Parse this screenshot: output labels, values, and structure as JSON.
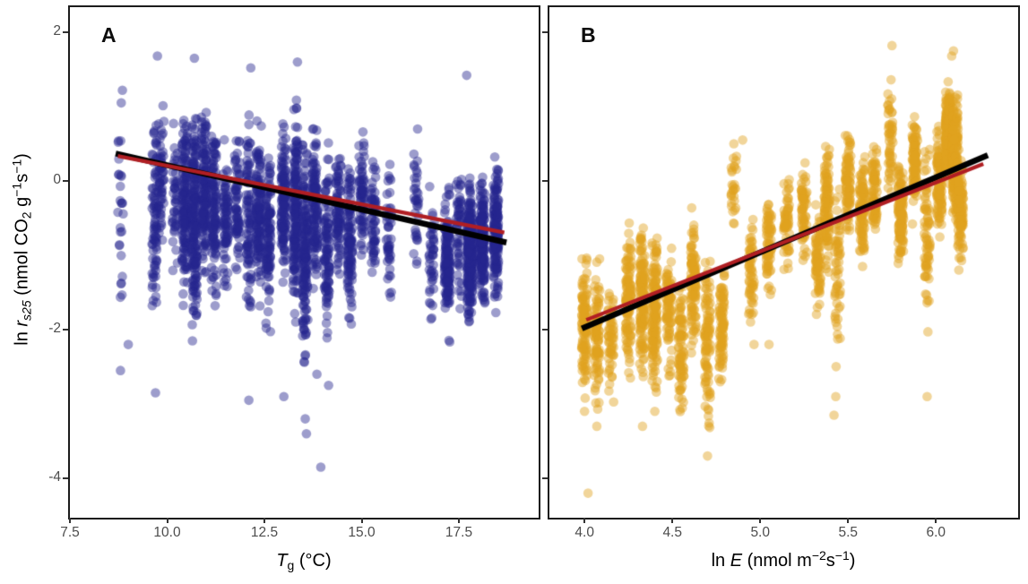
{
  "figure": {
    "background": "#ffffff",
    "border_color": "#1c1c1c",
    "tick_color": "#333333",
    "tick_label_color": "#4d4d4d"
  },
  "y_axis": {
    "ylim": [
      -4.53,
      2.337
    ],
    "ticks": [
      {
        "value": 2,
        "label": "2"
      },
      {
        "value": 0,
        "label": "0"
      },
      {
        "value": -2,
        "label": "-2"
      },
      {
        "value": -4,
        "label": "-4"
      }
    ],
    "title_parts": {
      "lead": "ln ",
      "italic": "r",
      "sub": "s25",
      "rest": " (nmol CO",
      "sub2": "2",
      "mid": " g",
      "sup1": "−1",
      "mid2": "s",
      "sup2": "−1",
      "close": ")"
    }
  },
  "chart_data": [
    {
      "id": "a",
      "type": "scatter",
      "panel_label": "A",
      "xlabel_parts": {
        "lead": "",
        "italic": "T",
        "sub": "g",
        "rest": " (°C)",
        "sup1": "",
        "mid": "",
        "sup2": "",
        "close": ""
      },
      "x_ticks": [
        {
          "value": 7.5,
          "label": "7.5"
        },
        {
          "value": 10.0,
          "label": "10.0"
        },
        {
          "value": 12.5,
          "label": "12.5"
        },
        {
          "value": 15.0,
          "label": "15.0"
        },
        {
          "value": 17.5,
          "label": "17.5"
        }
      ],
      "xlim": [
        7.5,
        19.55
      ],
      "point_color": "#26268f",
      "point_alpha": 0.45,
      "point_radius": 5.3,
      "jitter": 0.07,
      "seed": 42,
      "fit_lines": [
        {
          "color": "#000000",
          "width": 6.5,
          "x1": 8.75,
          "y1": 0.36,
          "x2": 18.65,
          "y2": -0.82
        },
        {
          "color": "#b01e23",
          "width": 4.2,
          "x1": 8.78,
          "y1": 0.33,
          "x2": 18.62,
          "y2": -0.69
        }
      ],
      "columns": [
        [
          8.8,
          -0.4,
          1.15,
          26
        ],
        [
          9.68,
          -0.5,
          1.25,
          80
        ],
        [
          9.85,
          -0.1,
          0.9,
          55
        ],
        [
          10.2,
          -0.2,
          0.8,
          45
        ],
        [
          10.45,
          -0.3,
          1.15,
          150
        ],
        [
          10.7,
          -0.5,
          1.2,
          200
        ],
        [
          10.95,
          -0.1,
          0.95,
          150
        ],
        [
          11.2,
          -0.4,
          1.1,
          120
        ],
        [
          11.5,
          -0.55,
          0.85,
          80
        ],
        [
          11.8,
          -0.3,
          0.8,
          70
        ],
        [
          12.1,
          -0.6,
          1.2,
          90
        ],
        [
          12.35,
          -0.4,
          0.95,
          130
        ],
        [
          12.6,
          -0.8,
          1.0,
          110
        ],
        [
          13.0,
          -0.3,
          0.9,
          140
        ],
        [
          13.3,
          -0.4,
          1.1,
          180
        ],
        [
          13.55,
          -0.9,
          1.2,
          160
        ],
        [
          13.8,
          -0.35,
          0.9,
          120
        ],
        [
          14.1,
          -0.9,
          1.1,
          100
        ],
        [
          14.4,
          -0.4,
          0.75,
          90
        ],
        [
          14.7,
          -0.8,
          0.9,
          110
        ],
        [
          15.0,
          -0.2,
          0.75,
          70
        ],
        [
          15.3,
          -0.6,
          0.8,
          60
        ],
        [
          15.7,
          -0.6,
          0.9,
          45
        ],
        [
          16.4,
          -0.3,
          0.9,
          35
        ],
        [
          16.8,
          -1.0,
          0.85,
          45
        ],
        [
          17.2,
          -1.1,
          0.8,
          140
        ],
        [
          17.5,
          -0.6,
          1.0,
          55
        ],
        [
          17.78,
          -1.0,
          0.75,
          260
        ],
        [
          18.1,
          -0.8,
          0.7,
          200
        ],
        [
          18.45,
          -0.75,
          0.8,
          170
        ]
      ],
      "extra_points": [
        [
          13.55,
          -3.2
        ],
        [
          13.58,
          -3.4
        ],
        [
          13.95,
          -3.85
        ],
        [
          13.85,
          -2.6
        ],
        [
          14.15,
          -2.75
        ],
        [
          12.1,
          -2.95
        ],
        [
          9.7,
          -2.85
        ],
        [
          9.0,
          -2.2
        ],
        [
          8.8,
          -2.55
        ],
        [
          13.0,
          -2.9
        ],
        [
          17.7,
          1.42
        ],
        [
          9.75,
          1.68
        ],
        [
          10.7,
          1.65
        ],
        [
          13.35,
          1.6
        ],
        [
          12.15,
          1.52
        ],
        [
          8.85,
          1.22
        ],
        [
          8.82,
          1.05
        ]
      ]
    },
    {
      "id": "b",
      "type": "scatter",
      "panel_label": "B",
      "xlabel_parts": {
        "lead": "ln ",
        "italic": "E",
        "sub": "",
        "rest": " (nmol m",
        "sup1": "−2",
        "mid": "s",
        "sup2": "−1",
        "close": ")"
      },
      "x_ticks": [
        {
          "value": 4.0,
          "label": "4.0"
        },
        {
          "value": 4.5,
          "label": "4.5"
        },
        {
          "value": 5.0,
          "label": "5.0"
        },
        {
          "value": 5.5,
          "label": "5.5"
        },
        {
          "value": 6.0,
          "label": "6.0"
        }
      ],
      "xlim": [
        3.8,
        6.468
      ],
      "point_color": "#dfa11f",
      "point_alpha": 0.45,
      "point_radius": 5.3,
      "jitter": 0.016,
      "seed": 1337,
      "fit_lines": [
        {
          "color": "#000000",
          "width": 6.5,
          "x1": 4.0,
          "y1": -1.97,
          "x2": 6.28,
          "y2": 0.33
        },
        {
          "color": "#b01e23",
          "width": 4.2,
          "x1": 4.02,
          "y1": -1.86,
          "x2": 6.26,
          "y2": 0.22
        }
      ],
      "columns": [
        [
          4.0,
          -1.9,
          0.85,
          120
        ],
        [
          4.07,
          -2.1,
          0.85,
          100
        ],
        [
          4.15,
          -2.0,
          0.7,
          60
        ],
        [
          4.25,
          -1.5,
          0.8,
          120
        ],
        [
          4.33,
          -1.6,
          0.9,
          150
        ],
        [
          4.4,
          -1.7,
          0.95,
          150
        ],
        [
          4.48,
          -1.7,
          0.7,
          80
        ],
        [
          4.55,
          -2.2,
          0.8,
          90
        ],
        [
          4.62,
          -1.4,
          0.8,
          110
        ],
        [
          4.7,
          -2.1,
          1.0,
          100
        ],
        [
          4.78,
          -1.9,
          0.75,
          90
        ],
        [
          4.85,
          -0.1,
          0.5,
          28
        ],
        [
          4.95,
          -1.3,
          0.7,
          60
        ],
        [
          5.05,
          -0.85,
          0.6,
          70
        ],
        [
          5.15,
          -0.6,
          0.55,
          60
        ],
        [
          5.25,
          -0.4,
          0.55,
          70
        ],
        [
          5.33,
          -1.0,
          0.6,
          80
        ],
        [
          5.38,
          -0.3,
          0.85,
          110
        ],
        [
          5.44,
          -1.2,
          1.0,
          60
        ],
        [
          5.5,
          0.0,
          0.6,
          90
        ],
        [
          5.58,
          -0.4,
          0.6,
          100
        ],
        [
          5.65,
          -0.15,
          0.6,
          80
        ],
        [
          5.74,
          0.6,
          0.75,
          55
        ],
        [
          5.8,
          -0.45,
          0.65,
          120
        ],
        [
          5.88,
          0.25,
          0.6,
          100
        ],
        [
          5.95,
          -0.7,
          1.0,
          80
        ],
        [
          6.02,
          0.0,
          0.6,
          120
        ],
        [
          6.07,
          0.6,
          0.55,
          250
        ],
        [
          6.11,
          0.3,
          0.7,
          200
        ],
        [
          6.14,
          -0.4,
          0.6,
          100
        ]
      ],
      "extra_points": [
        [
          4.02,
          -4.2
        ],
        [
          4.7,
          -3.7
        ],
        [
          5.42,
          -3.15
        ],
        [
          5.43,
          -2.9
        ],
        [
          5.75,
          1.82
        ],
        [
          4.85,
          0.5
        ],
        [
          6.1,
          1.75
        ],
        [
          6.09,
          1.68
        ],
        [
          5.95,
          -2.9
        ],
        [
          5.05,
          -2.2
        ],
        [
          4.33,
          -3.3
        ],
        [
          4.4,
          -3.1
        ],
        [
          4.0,
          -3.1
        ],
        [
          4.07,
          -3.3
        ],
        [
          4.9,
          0.55
        ]
      ]
    }
  ]
}
